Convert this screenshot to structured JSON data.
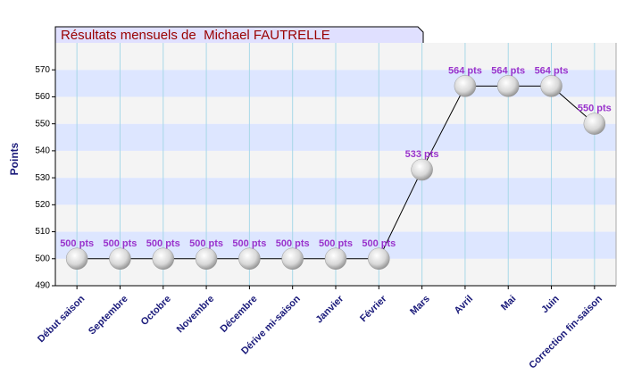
{
  "chart_data": {
    "type": "line",
    "title": "Résultats mensuels de  Michael FAUTRELLE",
    "y_label": "Points",
    "categories": [
      "Début saison",
      "Septembre",
      "Octobre",
      "Novembre",
      "Décembre",
      "Dérive mi-saison",
      "Janvier",
      "Février",
      "Mars",
      "Avril",
      "Mai",
      "Juin",
      "Correction fin-saison"
    ],
    "values": [
      500,
      500,
      500,
      500,
      500,
      500,
      500,
      500,
      533,
      564,
      564,
      564,
      550
    ],
    "value_labels": [
      "500 pts",
      "500 pts",
      "500 pts",
      "500 pts",
      "500 pts",
      "500 pts",
      "500 pts",
      "500 pts",
      "533 pts",
      "564 pts",
      "564 pts",
      "564 pts",
      "550 pts"
    ],
    "color": "#000000",
    "ylim": [
      490,
      580
    ],
    "yticks": [
      490,
      500,
      510,
      520,
      530,
      540,
      550,
      560,
      570
    ],
    "grid": true
  }
}
